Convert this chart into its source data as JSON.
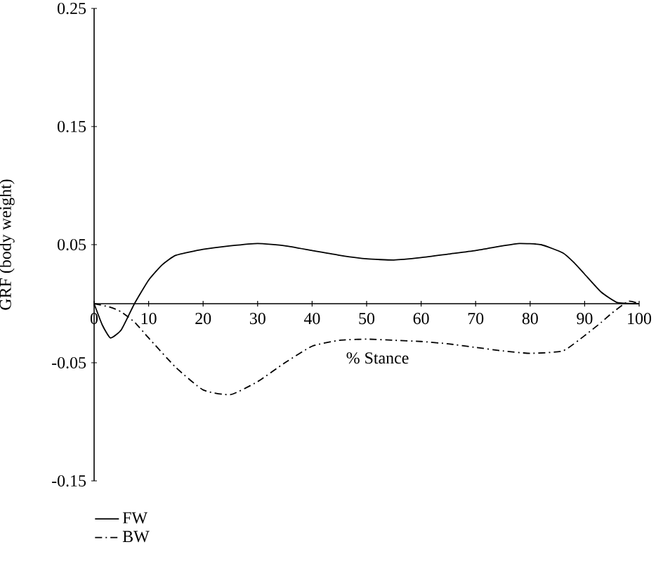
{
  "chart_data": {
    "type": "line",
    "xlabel": "% Stance",
    "ylabel": "GRF (body weight)",
    "xlim": [
      0,
      100
    ],
    "ylim": [
      -0.15,
      0.25
    ],
    "xticks": [
      0,
      10,
      20,
      30,
      40,
      50,
      60,
      70,
      80,
      90,
      100
    ],
    "yticks": [
      -0.15,
      -0.05,
      0.05,
      0.15,
      0.25
    ],
    "grid": false,
    "legend": "bottom left",
    "series": [
      {
        "name": "FW",
        "color": "#000000",
        "line_style": "solid",
        "x": [
          0,
          1.5,
          3,
          5,
          7.4,
          10,
          12.5,
          15,
          20,
          25,
          30,
          35,
          40,
          45,
          50,
          55,
          60,
          65,
          70,
          75,
          78,
          82,
          86,
          88,
          90,
          93,
          96,
          100
        ],
        "values": [
          0,
          -0.018,
          -0.029,
          -0.022,
          0,
          0.02,
          0.033,
          0.041,
          0.046,
          0.049,
          0.051,
          0.049,
          0.045,
          0.041,
          0.038,
          0.037,
          0.039,
          0.042,
          0.045,
          0.049,
          0.051,
          0.05,
          0.043,
          0.035,
          0.025,
          0.01,
          0.001,
          0
        ]
      },
      {
        "name": "BW",
        "color": "#000000",
        "line_style": "dashdot",
        "x": [
          0,
          3,
          5,
          7.5,
          10,
          15,
          20,
          25,
          30,
          35,
          40,
          45,
          50,
          55,
          60,
          65,
          70,
          75,
          80,
          86,
          90,
          93,
          95,
          98,
          100
        ],
        "values": [
          0,
          -0.003,
          -0.007,
          -0.016,
          -0.029,
          -0.054,
          -0.073,
          -0.077,
          -0.066,
          -0.05,
          -0.036,
          -0.031,
          -0.03,
          -0.031,
          -0.032,
          -0.034,
          -0.037,
          -0.04,
          -0.042,
          -0.04,
          -0.027,
          -0.016,
          -0.008,
          0.002,
          0
        ]
      }
    ]
  }
}
